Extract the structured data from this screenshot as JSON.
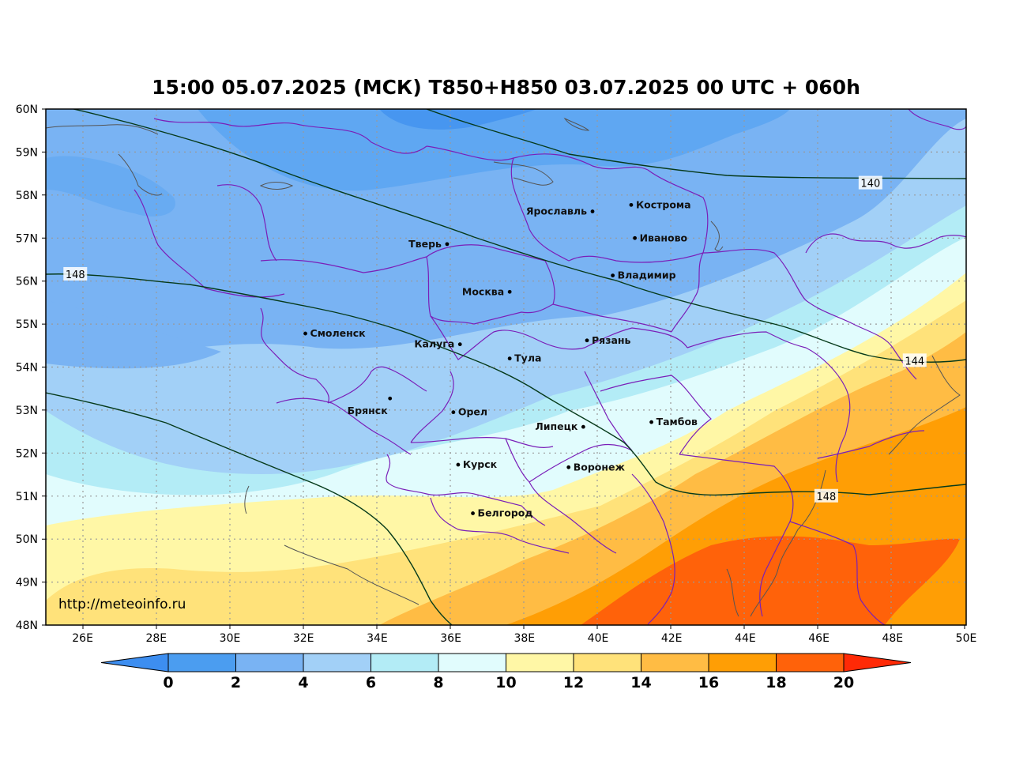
{
  "title": "15:00 05.07.2025 (МСК) T850+H850 03.07.2025 00 UTC + 060h",
  "watermark": "http://meteoinfo.ru",
  "lat_ticks": [
    "60N",
    "59N",
    "58N",
    "57N",
    "56N",
    "55N",
    "54N",
    "53N",
    "52N",
    "51N",
    "50N",
    "49N",
    "48N"
  ],
  "lon_ticks": [
    "26E",
    "28E",
    "30E",
    "32E",
    "34E",
    "36E",
    "38E",
    "40E",
    "42E",
    "44E",
    "46E",
    "48E",
    "50E"
  ],
  "map_extent": {
    "lon": [
      25,
      50
    ],
    "lat": [
      48,
      60
    ]
  },
  "cities": [
    {
      "name": "Кострома",
      "lon": 40.9,
      "lat": 57.77
    },
    {
      "name": "Ярославль",
      "lon": 39.85,
      "lat": 57.62
    },
    {
      "name": "Иваново",
      "lon": 41.0,
      "lat": 57.0
    },
    {
      "name": "Тверь",
      "lon": 35.9,
      "lat": 56.86
    },
    {
      "name": "Владимир",
      "lon": 40.4,
      "lat": 56.13
    },
    {
      "name": "Москва",
      "lon": 37.6,
      "lat": 55.75
    },
    {
      "name": "Смоленск",
      "lon": 32.05,
      "lat": 54.78
    },
    {
      "name": "Рязань",
      "lon": 39.7,
      "lat": 54.62
    },
    {
      "name": "Калуга",
      "lon": 36.25,
      "lat": 54.53
    },
    {
      "name": "Тула",
      "lon": 37.6,
      "lat": 54.2
    },
    {
      "name": "Брянск",
      "lon": 34.35,
      "lat": 53.27
    },
    {
      "name": "Орел",
      "lon": 36.07,
      "lat": 52.95
    },
    {
      "name": "Тамбов",
      "lon": 41.45,
      "lat": 52.72
    },
    {
      "name": "Липецк",
      "lon": 39.6,
      "lat": 52.61
    },
    {
      "name": "Курск",
      "lon": 36.2,
      "lat": 51.73
    },
    {
      "name": "Воронеж",
      "lon": 39.2,
      "lat": 51.67
    },
    {
      "name": "Белгород",
      "lon": 36.6,
      "lat": 50.6
    }
  ],
  "contour_labels": [
    {
      "text": "140",
      "lon": 47.4,
      "lat": 58.28
    },
    {
      "text": "148",
      "lon": 25.8,
      "lat": 56.16
    },
    {
      "text": "144",
      "lon": 48.6,
      "lat": 54.15
    },
    {
      "text": "148",
      "lon": 46.2,
      "lat": 51.0
    }
  ],
  "colorbar": {
    "ticks": [
      "0",
      "2",
      "4",
      "6",
      "8",
      "10",
      "12",
      "14",
      "16",
      "18",
      "20"
    ],
    "colors": [
      "#3d8ef0",
      "#4b9df0",
      "#79b3f3",
      "#a2d0f7",
      "#b3ecf6",
      "#e1fcfd",
      "#fff7a6",
      "#ffe27a",
      "#ffbc44",
      "#ff9e05",
      "#ff620a",
      "#ff2a06"
    ]
  }
}
